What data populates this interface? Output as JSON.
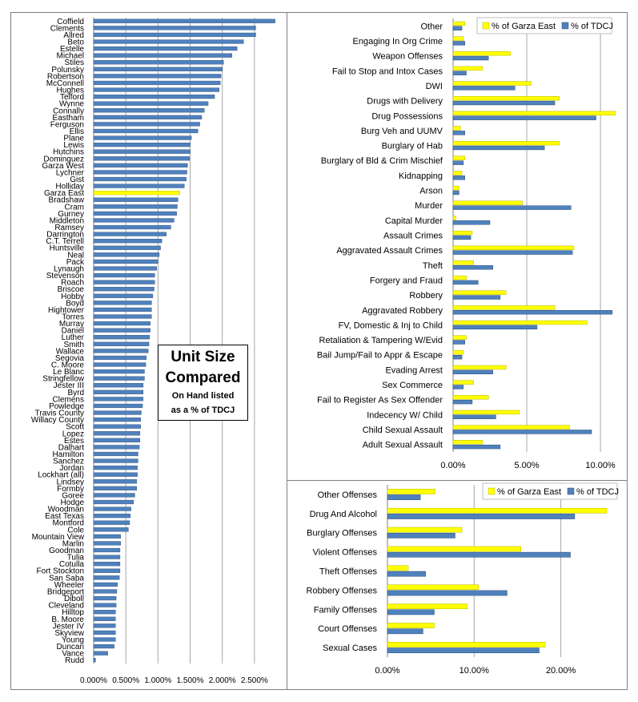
{
  "colors": {
    "garza": "#ffff00",
    "garza_edge": "#b8b800",
    "tdcj": "#4f81bd",
    "tdcj_dark": "#2c4d75",
    "highlight": "#ffff00",
    "grid": "#a6a6a6"
  },
  "callout": {
    "title_line1": "Unit Size",
    "title_line2": "Compared",
    "sub_line1": "On Hand listed",
    "sub_line2": "as a % of TDCJ"
  },
  "chart_data": [
    {
      "type": "bar",
      "orientation": "horizontal",
      "highlight_category": "Garza East",
      "categories": [
        "Coffield",
        "Clements",
        "Allred",
        "Beto",
        "Estelle",
        "Michael",
        "Stiles",
        "Polunsky",
        "Robertson",
        "McConnell",
        "Hughes",
        "Telford",
        "Wynne",
        "Connally",
        "Eastham",
        "Ferguson",
        "Ellis",
        "Plane",
        "Lewis",
        "Hutchins",
        "Dominguez",
        "Garza West",
        "Lychner",
        "Gist",
        "Holliday",
        "Garza East",
        "Bradshaw",
        "Cram",
        "Gurney",
        "Middleton",
        "Ramsey",
        "Darrington",
        "C.T. Terrell",
        "Huntsville",
        "Neal",
        "Pack",
        "Lynaugh",
        "Stevenson",
        "Roach",
        "Briscoe",
        "Hobby",
        "Boyd",
        "Hightower",
        "Torres",
        "Murray",
        "Daniel",
        "Luther",
        "Smith",
        "Wallace",
        "Segovia",
        "C. Moore",
        "Le Blanc",
        "Stringfellow",
        "Jester III",
        "Byrd",
        "Clemens",
        "Powledge",
        "Travis County",
        "Willacy County",
        "Scott",
        "Lopez",
        "Estes",
        "Dalhart",
        "Hamilton",
        "Sanchez",
        "Jordan",
        "Lockhart (all)",
        "Lindsey",
        "Formby",
        "Goree",
        "Hodge",
        "Woodman",
        "East Texas",
        "Montford",
        "Cole",
        "Mountain View",
        "Marlin",
        "Goodman",
        "Tulia",
        "Cotulla",
        "Fort Stockton",
        "San Saba",
        "Wheeler",
        "Bridgeport",
        "Diboll",
        "Cleveland",
        "Hilltop",
        "B. Moore",
        "Jester IV",
        "Skyview",
        "Young",
        "Duncan",
        "Vance",
        "Rudd"
      ],
      "values": [
        2.82,
        2.52,
        2.52,
        2.33,
        2.23,
        2.15,
        2.02,
        2.0,
        1.98,
        1.97,
        1.95,
        1.88,
        1.78,
        1.72,
        1.68,
        1.65,
        1.62,
        1.52,
        1.5,
        1.5,
        1.49,
        1.46,
        1.45,
        1.44,
        1.41,
        1.34,
        1.31,
        1.3,
        1.29,
        1.25,
        1.2,
        1.13,
        1.06,
        1.04,
        1.02,
        1.0,
        0.98,
        0.95,
        0.95,
        0.94,
        0.92,
        0.9,
        0.9,
        0.9,
        0.88,
        0.88,
        0.87,
        0.86,
        0.85,
        0.82,
        0.81,
        0.79,
        0.79,
        0.77,
        0.77,
        0.77,
        0.76,
        0.74,
        0.73,
        0.73,
        0.72,
        0.72,
        0.71,
        0.69,
        0.69,
        0.68,
        0.68,
        0.67,
        0.67,
        0.64,
        0.62,
        0.58,
        0.57,
        0.56,
        0.54,
        0.42,
        0.42,
        0.41,
        0.41,
        0.41,
        0.41,
        0.4,
        0.37,
        0.36,
        0.35,
        0.35,
        0.34,
        0.34,
        0.34,
        0.34,
        0.34,
        0.32,
        0.22,
        0.03
      ],
      "xticks": [
        "0.000%",
        "0.500%",
        "1.000%",
        "1.500%",
        "2.000%",
        "2.500%"
      ],
      "xlim": [
        0,
        2.85
      ]
    },
    {
      "type": "bar",
      "orientation": "horizontal",
      "categories": [
        "Other",
        "Engaging In Org Crime",
        "Weapon Offenses",
        "Fail to Stop and Intox Cases",
        "DWI",
        "Drugs with Delivery",
        "Drug Possessions",
        "Burg Veh and UUMV",
        "Burglary of Hab",
        "Burglary of Bld & Crim Mischief",
        "Kidnapping",
        "Arson",
        "Murder",
        "Capital Murder",
        "Assault Crimes",
        "Aggravated Assault Crimes",
        "Theft",
        "Forgery and Fraud",
        "Robbery",
        "Aggravated Robbery",
        "FV, Domestic & Inj to Child",
        "Retaliation & Tampering  W/Evid",
        "Bail Jump/Fail to Appr & Escape",
        "Evading Arrest",
        "Sex Commerce",
        "Fail to Register As Sex Offender",
        "Indecency W/ Child",
        "Child Sexual Assault",
        "Adult Sexual Assault"
      ],
      "series": [
        {
          "name": "% of Garza East",
          "values": [
            0.8,
            0.7,
            3.9,
            2.0,
            5.3,
            7.2,
            11.0,
            0.5,
            7.2,
            0.8,
            0.6,
            0.4,
            4.7,
            0.2,
            1.3,
            8.2,
            1.4,
            0.9,
            3.6,
            6.9,
            9.1,
            0.9,
            0.7,
            3.6,
            1.4,
            2.4,
            4.5,
            7.9,
            2.0
          ]
        },
        {
          "name": "% of TDCJ",
          "values": [
            0.6,
            0.8,
            2.4,
            0.9,
            4.2,
            6.9,
            9.7,
            0.8,
            6.2,
            0.7,
            0.8,
            0.4,
            8.0,
            2.5,
            1.2,
            8.1,
            2.7,
            1.7,
            3.2,
            10.8,
            5.7,
            0.8,
            0.6,
            2.7,
            0.7,
            1.3,
            2.9,
            9.4,
            3.2
          ]
        }
      ],
      "xticks": [
        "0.00%",
        "5.00%",
        "10.00%"
      ],
      "xlim": [
        0,
        11.3
      ]
    },
    {
      "type": "bar",
      "orientation": "horizontal",
      "categories": [
        "Other Offenses",
        "Drug And Alcohol",
        "Burglary Offenses",
        "Violent Offenses",
        "Theft Offenses",
        "Robbery Offenses",
        "Family Offenses",
        "Court Offenses",
        "Sexual Cases"
      ],
      "series": [
        {
          "name": "% of Garza East",
          "values": [
            5.5,
            25.3,
            8.6,
            15.4,
            2.4,
            10.5,
            9.2,
            5.4,
            18.2
          ]
        },
        {
          "name": "% of TDCJ",
          "values": [
            3.8,
            21.6,
            7.8,
            21.1,
            4.4,
            13.8,
            5.4,
            4.1,
            17.5
          ]
        }
      ],
      "xticks": [
        "0.00%",
        "10.00%",
        "20.00%"
      ],
      "xlim": [
        0,
        26.5
      ]
    }
  ]
}
